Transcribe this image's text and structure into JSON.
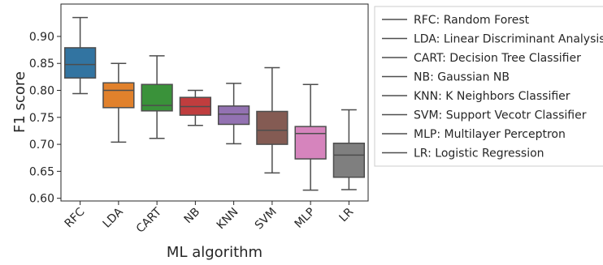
{
  "chart_data": {
    "type": "boxplot",
    "title": "",
    "xlabel": "ML algorithm",
    "ylabel": "F1 score",
    "ylim": [
      0.595,
      0.96
    ],
    "yticks": [
      0.6,
      0.65,
      0.7,
      0.75,
      0.8,
      0.85,
      0.9
    ],
    "ytick_labels": [
      "0.60",
      "0.65",
      "0.70",
      "0.75",
      "0.80",
      "0.85",
      "0.90"
    ],
    "grid": false,
    "legend_position": "outside-right",
    "categories": [
      "RFC",
      "LDA",
      "CART",
      "NB",
      "KNN",
      "SVM",
      "MLP",
      "LR"
    ],
    "boxes": [
      {
        "label": "RFC",
        "color": "#3274a1",
        "whisker_low": 0.794,
        "q1": 0.823,
        "median": 0.848,
        "q3": 0.879,
        "whisker_high": 0.935
      },
      {
        "label": "LDA",
        "color": "#e1812c",
        "whisker_low": 0.704,
        "q1": 0.768,
        "median": 0.8,
        "q3": 0.814,
        "whisker_high": 0.85
      },
      {
        "label": "CART",
        "color": "#3a923a",
        "whisker_low": 0.711,
        "q1": 0.762,
        "median": 0.772,
        "q3": 0.811,
        "whisker_high": 0.864
      },
      {
        "label": "NB",
        "color": "#c03d3e",
        "whisker_low": 0.735,
        "q1": 0.754,
        "median": 0.77,
        "q3": 0.787,
        "whisker_high": 0.8
      },
      {
        "label": "KNN",
        "color": "#9372b2",
        "whisker_low": 0.701,
        "q1": 0.737,
        "median": 0.756,
        "q3": 0.771,
        "whisker_high": 0.813
      },
      {
        "label": "SVM",
        "color": "#845b53",
        "whisker_low": 0.647,
        "q1": 0.7,
        "median": 0.726,
        "q3": 0.761,
        "whisker_high": 0.842
      },
      {
        "label": "MLP",
        "color": "#d684bd",
        "whisker_low": 0.615,
        "q1": 0.673,
        "median": 0.72,
        "q3": 0.733,
        "whisker_high": 0.811
      },
      {
        "label": "LR",
        "color": "#7f7f7f",
        "whisker_low": 0.616,
        "q1": 0.639,
        "median": 0.68,
        "q3": 0.702,
        "whisker_high": 0.764
      }
    ],
    "legend": [
      "RFC: Random Forest",
      "LDA: Linear Discriminant Analysis",
      "CART: Decision Tree Classifier",
      "NB: Gaussian NB",
      "KNN: K Neighbors Classifier",
      "SVM: Support Vecotr Classifier",
      "MLP: Multilayer Perceptron",
      "LR: Logistic Regression"
    ]
  }
}
